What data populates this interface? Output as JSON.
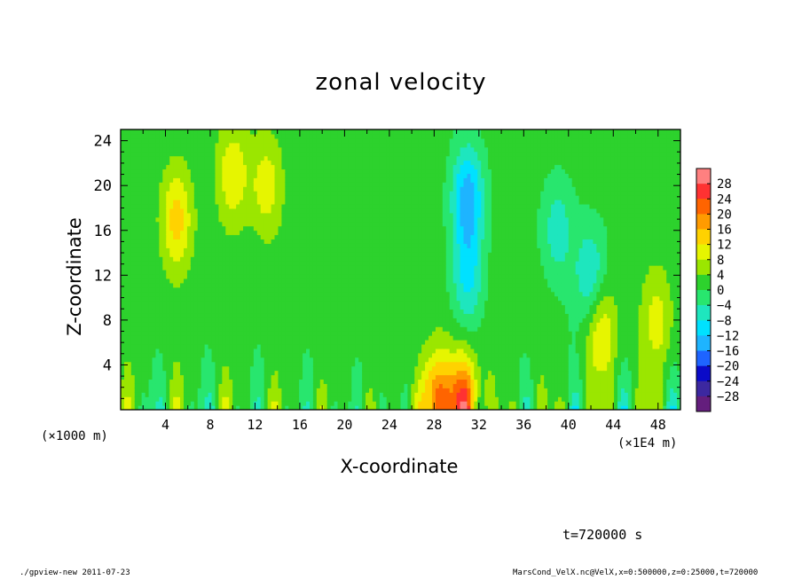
{
  "chart_data": {
    "type": "heatmap",
    "title": "zonal velocity",
    "xlabel": "X-coordinate",
    "ylabel": "Z-coordinate",
    "x_unit_left": "(×1000 m)",
    "x_unit_right": "(×1E4 m)",
    "xlim": [
      0,
      50
    ],
    "ylim": [
      0,
      25
    ],
    "x_ticks": [
      "4",
      "8",
      "12",
      "16",
      "20",
      "24",
      "28",
      "32",
      "36",
      "40",
      "44",
      "48"
    ],
    "y_ticks": [
      "4",
      "8",
      "12",
      "16",
      "20",
      "24"
    ],
    "colorbar": {
      "levels": [
        "28",
        "24",
        "20",
        "16",
        "12",
        "8",
        "4",
        "0",
        "−4",
        "−8",
        "−12",
        "−16",
        "−20",
        "−24",
        "−28"
      ],
      "colors": [
        "#ff8080",
        "#ff3232",
        "#ff6400",
        "#ff9b00",
        "#ffd200",
        "#e6f500",
        "#9be600",
        "#2dd22d",
        "#28e66e",
        "#1ee6be",
        "#00e1ff",
        "#1eb4ff",
        "#1e64ff",
        "#0a0ac8",
        "#3c28a0",
        "#641e7d"
      ]
    },
    "field_description": "x ticks every 4 (labels shown), y ticks every 4",
    "features": [
      {
        "x": 5,
        "z": 17,
        "value": 12
      },
      {
        "x": 10,
        "z": 21,
        "value": 10
      },
      {
        "x": 13,
        "z": 20,
        "value": 9
      },
      {
        "x": 31,
        "z": 19,
        "value": -16
      },
      {
        "x": 31,
        "z": 12,
        "value": -10
      },
      {
        "x": 30.5,
        "z": 0.5,
        "value": 24
      },
      {
        "x": 28,
        "z": 0.5,
        "value": 18
      },
      {
        "x": 39,
        "z": 16,
        "value": -8
      },
      {
        "x": 42,
        "z": 12,
        "value": -10
      },
      {
        "x": 43,
        "z": 7,
        "value": 10
      },
      {
        "x": 48,
        "z": 8,
        "value": 8
      }
    ]
  },
  "annotations": {
    "time": "t=720000 s",
    "footer_left": "./gpview-new   2011-07-23",
    "footer_right": "MarsCond_VelX.nc@VelX,x=0:500000,z=0:25000,t=720000"
  }
}
